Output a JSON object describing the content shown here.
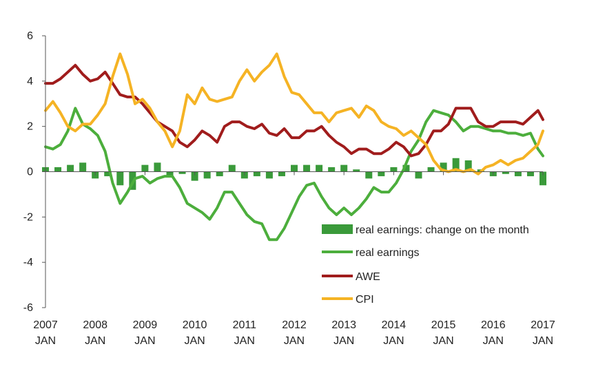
{
  "chart_data": {
    "type": "line",
    "title": "",
    "xlabel": "",
    "ylabel": "",
    "ylim": [
      -6,
      6
    ],
    "yticks": [
      "6",
      "4",
      "2",
      "0",
      "-2",
      "-4",
      "-6"
    ],
    "xticks": [
      {
        "year": "2007",
        "month": "JAN"
      },
      {
        "year": "2008",
        "month": "JAN"
      },
      {
        "year": "2009",
        "month": "JAN"
      },
      {
        "year": "2010",
        "month": "JAN"
      },
      {
        "year": "2011",
        "month": "JAN"
      },
      {
        "year": "2012",
        "month": "JAN"
      },
      {
        "year": "2013",
        "month": "JAN"
      },
      {
        "year": "2014",
        "month": "JAN"
      },
      {
        "year": "2015",
        "month": "JAN"
      },
      {
        "year": "2016",
        "month": "JAN"
      },
      {
        "year": "2017",
        "month": "JAN"
      }
    ],
    "grid": false,
    "legend_position": "bottom-right",
    "legend": [
      "real earnings: change on the month",
      "real earnings",
      "AWE",
      "CPI"
    ],
    "colors": {
      "real_earnings_change": "#3a9a3a",
      "real_earnings": "#4cae3c",
      "awe": "#a01c1c",
      "cpi": "#f5b324",
      "axis": "#555555"
    },
    "series": [
      {
        "name": "real earnings: change on the month",
        "kind": "bar",
        "x": [
          2007.0,
          2007.25,
          2007.5,
          2007.75,
          2008.0,
          2008.25,
          2008.5,
          2008.75,
          2009.0,
          2009.25,
          2009.5,
          2009.75,
          2010.0,
          2010.25,
          2010.5,
          2010.75,
          2011.0,
          2011.25,
          2011.5,
          2011.75,
          2012.0,
          2012.25,
          2012.5,
          2012.75,
          2013.0,
          2013.25,
          2013.5,
          2013.75,
          2014.0,
          2014.25,
          2014.5,
          2014.75,
          2015.0,
          2015.25,
          2015.5,
          2015.75,
          2016.0,
          2016.25,
          2016.5,
          2016.75,
          2017.0
        ],
        "values": [
          0.2,
          0.2,
          0.3,
          0.4,
          -0.3,
          -0.2,
          -0.6,
          -0.8,
          0.3,
          0.4,
          -0.2,
          -0.1,
          -0.4,
          -0.3,
          -0.2,
          0.3,
          -0.3,
          -0.2,
          -0.3,
          -0.2,
          0.3,
          0.3,
          0.3,
          0.2,
          0.3,
          0.1,
          -0.3,
          -0.2,
          0.2,
          0.3,
          -0.3,
          0.2,
          0.4,
          0.6,
          0.5,
          0.1,
          -0.2,
          -0.1,
          -0.2,
          -0.2,
          -0.6
        ]
      },
      {
        "name": "real earnings",
        "kind": "line",
        "x": [
          2007.0,
          2007.15,
          2007.3,
          2007.45,
          2007.6,
          2007.75,
          2007.9,
          2008.05,
          2008.2,
          2008.35,
          2008.5,
          2008.65,
          2008.8,
          2008.95,
          2009.1,
          2009.25,
          2009.4,
          2009.55,
          2009.7,
          2009.85,
          2010.0,
          2010.15,
          2010.3,
          2010.45,
          2010.6,
          2010.75,
          2010.9,
          2011.05,
          2011.2,
          2011.35,
          2011.5,
          2011.65,
          2011.8,
          2011.95,
          2012.1,
          2012.25,
          2012.4,
          2012.55,
          2012.7,
          2012.85,
          2013.0,
          2013.15,
          2013.3,
          2013.45,
          2013.6,
          2013.75,
          2013.9,
          2014.05,
          2014.2,
          2014.35,
          2014.5,
          2014.65,
          2014.8,
          2014.95,
          2015.1,
          2015.25,
          2015.4,
          2015.55,
          2015.7,
          2015.85,
          2016.0,
          2016.15,
          2016.3,
          2016.45,
          2016.6,
          2016.75,
          2016.9,
          2017.0
        ],
        "values": [
          1.1,
          1.0,
          1.2,
          1.8,
          2.8,
          2.1,
          1.9,
          1.6,
          0.9,
          -0.5,
          -1.4,
          -0.9,
          -0.3,
          -0.2,
          -0.5,
          -0.3,
          -0.2,
          -0.2,
          -0.7,
          -1.4,
          -1.6,
          -1.8,
          -2.1,
          -1.6,
          -0.9,
          -0.9,
          -1.4,
          -1.9,
          -2.2,
          -2.3,
          -3.0,
          -3.0,
          -2.5,
          -1.8,
          -1.1,
          -0.6,
          -0.5,
          -1.1,
          -1.6,
          -1.9,
          -1.6,
          -1.9,
          -1.6,
          -1.2,
          -0.7,
          -0.9,
          -0.9,
          -0.5,
          0.1,
          0.9,
          1.4,
          2.2,
          2.7,
          2.6,
          2.5,
          2.2,
          1.8,
          2.0,
          2.0,
          1.9,
          1.8,
          1.8,
          1.7,
          1.7,
          1.6,
          1.7,
          1.0,
          0.7
        ]
      },
      {
        "name": "AWE",
        "kind": "line",
        "x": [
          2007.0,
          2007.15,
          2007.3,
          2007.45,
          2007.6,
          2007.75,
          2007.9,
          2008.05,
          2008.2,
          2008.35,
          2008.5,
          2008.65,
          2008.8,
          2008.95,
          2009.1,
          2009.25,
          2009.4,
          2009.55,
          2009.7,
          2009.85,
          2010.0,
          2010.15,
          2010.3,
          2010.45,
          2010.6,
          2010.75,
          2010.9,
          2011.05,
          2011.2,
          2011.35,
          2011.5,
          2011.65,
          2011.8,
          2011.95,
          2012.1,
          2012.25,
          2012.4,
          2012.55,
          2012.7,
          2012.85,
          2013.0,
          2013.15,
          2013.3,
          2013.45,
          2013.6,
          2013.75,
          2013.9,
          2014.05,
          2014.2,
          2014.35,
          2014.5,
          2014.65,
          2014.8,
          2014.95,
          2015.1,
          2015.25,
          2015.4,
          2015.55,
          2015.7,
          2015.85,
          2016.0,
          2016.15,
          2016.3,
          2016.45,
          2016.6,
          2016.75,
          2016.9,
          2017.0
        ],
        "values": [
          3.9,
          3.9,
          4.1,
          4.4,
          4.7,
          4.3,
          4.0,
          4.1,
          4.4,
          3.9,
          3.4,
          3.3,
          3.3,
          3.0,
          2.6,
          2.2,
          2.0,
          1.8,
          1.3,
          1.1,
          1.4,
          1.8,
          1.6,
          1.3,
          2.0,
          2.2,
          2.2,
          2.0,
          1.9,
          2.1,
          1.7,
          1.6,
          1.9,
          1.5,
          1.5,
          1.8,
          1.8,
          2.0,
          1.6,
          1.3,
          1.1,
          0.8,
          1.0,
          1.0,
          0.8,
          0.8,
          1.0,
          1.3,
          1.1,
          0.7,
          0.8,
          1.2,
          1.8,
          1.8,
          2.1,
          2.8,
          2.8,
          2.8,
          2.2,
          2.0,
          2.0,
          2.2,
          2.2,
          2.2,
          2.1,
          2.4,
          2.7,
          2.3
        ]
      },
      {
        "name": "CPI",
        "kind": "line",
        "x": [
          2007.0,
          2007.15,
          2007.3,
          2007.45,
          2007.6,
          2007.75,
          2007.9,
          2008.05,
          2008.2,
          2008.35,
          2008.5,
          2008.65,
          2008.8,
          2008.95,
          2009.1,
          2009.25,
          2009.4,
          2009.55,
          2009.7,
          2009.85,
          2010.0,
          2010.15,
          2010.3,
          2010.45,
          2010.6,
          2010.75,
          2010.9,
          2011.05,
          2011.2,
          2011.35,
          2011.5,
          2011.65,
          2011.8,
          2011.95,
          2012.1,
          2012.25,
          2012.4,
          2012.55,
          2012.7,
          2012.85,
          2013.0,
          2013.15,
          2013.3,
          2013.45,
          2013.6,
          2013.75,
          2013.9,
          2014.05,
          2014.2,
          2014.35,
          2014.5,
          2014.65,
          2014.8,
          2014.95,
          2015.1,
          2015.25,
          2015.4,
          2015.55,
          2015.7,
          2015.85,
          2016.0,
          2016.15,
          2016.3,
          2016.45,
          2016.6,
          2016.75,
          2016.9,
          2017.0
        ],
        "values": [
          2.7,
          3.1,
          2.6,
          2.0,
          1.8,
          2.1,
          2.1,
          2.5,
          3.0,
          4.2,
          5.2,
          4.3,
          3.0,
          3.2,
          2.8,
          2.2,
          1.8,
          1.1,
          1.8,
          3.4,
          3.0,
          3.7,
          3.2,
          3.1,
          3.2,
          3.3,
          4.0,
          4.5,
          4.0,
          4.4,
          4.7,
          5.2,
          4.2,
          3.5,
          3.4,
          3.0,
          2.6,
          2.6,
          2.2,
          2.6,
          2.7,
          2.8,
          2.4,
          2.9,
          2.7,
          2.2,
          2.0,
          1.9,
          1.6,
          1.8,
          1.5,
          1.2,
          0.5,
          0.1,
          0.0,
          0.1,
          0.0,
          0.1,
          -0.1,
          0.2,
          0.3,
          0.5,
          0.3,
          0.5,
          0.6,
          0.9,
          1.2,
          1.8
        ]
      }
    ]
  }
}
